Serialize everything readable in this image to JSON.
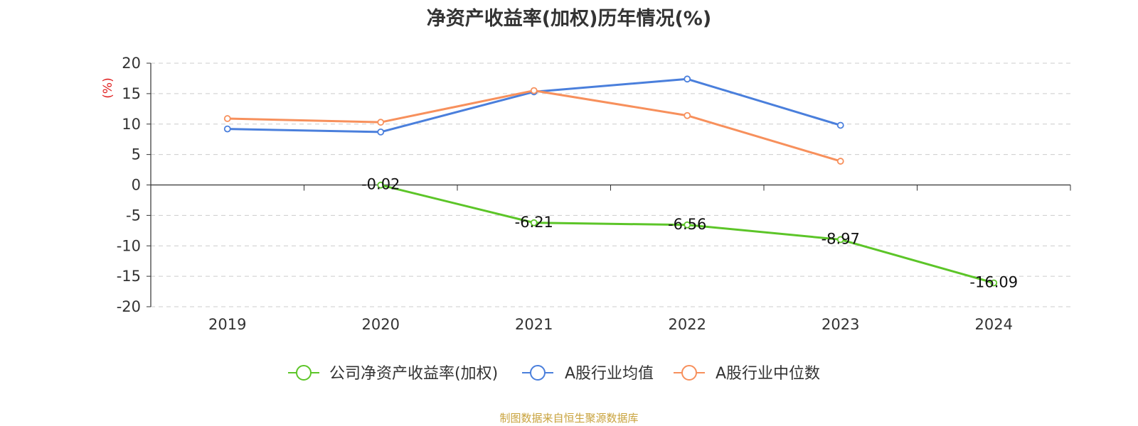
{
  "chart_data": {
    "type": "line",
    "title": "净资产收益率(加权)历年情况(%)",
    "ylabel": "(%)",
    "xlabel": "",
    "categories": [
      "2019",
      "2020",
      "2021",
      "2022",
      "2023",
      "2024"
    ],
    "ylim": [
      -20,
      20
    ],
    "yticks": [
      20,
      15,
      10,
      5,
      0,
      -5,
      -10,
      -15,
      -20
    ],
    "grid": true,
    "legend_position": "bottom",
    "series": [
      {
        "name": "公司净资产收益率(加权)",
        "color": "#5cc528",
        "values": [
          null,
          -0.02,
          -6.21,
          -6.56,
          -8.97,
          -16.09
        ],
        "labels": [
          "",
          "-0.02",
          "-6.21",
          "-6.56",
          "-8.97",
          "-16.09"
        ],
        "show_labels": true
      },
      {
        "name": "A股行业均值",
        "color": "#4a7fdc",
        "values": [
          9.2,
          8.7,
          15.3,
          17.4,
          9.8,
          null
        ],
        "show_labels": false
      },
      {
        "name": "A股行业中位数",
        "color": "#f7905c",
        "values": [
          10.9,
          10.3,
          15.5,
          11.4,
          3.9,
          null
        ],
        "show_labels": false
      }
    ]
  },
  "source_note": "制图数据来自恒生聚源数据库"
}
